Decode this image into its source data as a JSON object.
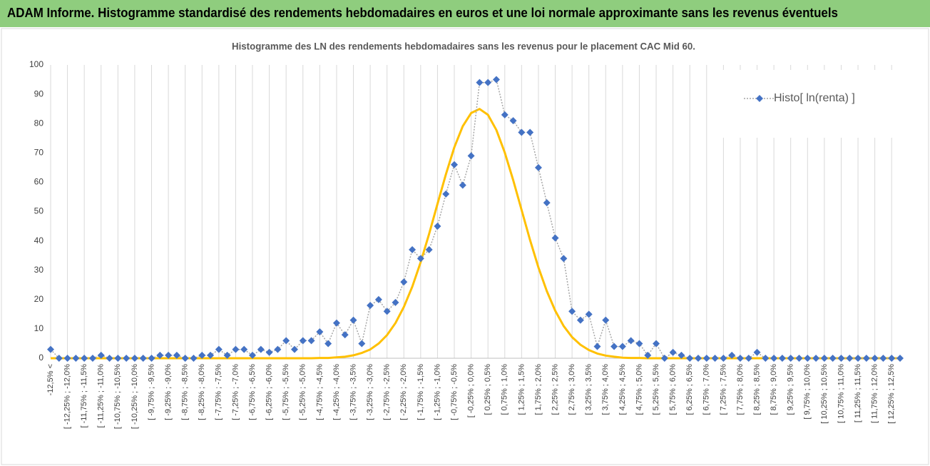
{
  "header": {
    "title": "ADAM Informe. Histogramme standardisé des rendements hebdomadaires en euros et une loi normale approximante sans les revenus éventuels"
  },
  "chart_data": {
    "type": "line",
    "title": "Histogramme des LN des rendements hebdomadaires sans les revenus pour le placement CAC Mid 60.",
    "categories": [
      "-12,5% <",
      null,
      "[ -12,25% ; -12,0%",
      null,
      "[ -11,75% ; -11,5%",
      null,
      "[ -11,25% ; -11,0%",
      null,
      "[ -10,75% ; -10,5%",
      null,
      "[ -10,25% ; -10,0%",
      null,
      "[ -9,75% ; -9,5%",
      null,
      "[ -9,25% ; -9,0%",
      null,
      "[ -8,75% ; -8,5%",
      null,
      "[ -8,25% ; -8,0%",
      null,
      "[ -7,75% ; -7,5%",
      null,
      "[ -7,25% ; -7,0%",
      null,
      "[ -6,75% ; -6,5%",
      null,
      "[ -6,25% ; -6,0%",
      null,
      "[ -5,75% ; -5,5%",
      null,
      "[ -5,25% ; -5,0%",
      null,
      "[ -4,75% ; -4,5%",
      null,
      "[ -4,25% ; -4,0%",
      null,
      "[ -3,75% ; -3,5%",
      null,
      "[ -3,25% ; -3,0%",
      null,
      "[ -2,75% ; -2,5%",
      null,
      "[ -2,25% ; -2,0%",
      null,
      "[ -1,75% ; -1,5%",
      null,
      "[ -1,25% ; -1,0%",
      null,
      "[ -0,75% ; -0,5%",
      null,
      "[ -0,25% ; 0,0%",
      null,
      "[ 0,25% ; 0,5%",
      null,
      "[ 0,75% ; 1,0%",
      null,
      "[ 1,25% ; 1,5%",
      null,
      "[ 1,75% ; 2,0%",
      null,
      "[ 2,25% ; 2,5%",
      null,
      "[ 2,75% ; 3,0%",
      null,
      "[ 3,25% ; 3,5%",
      null,
      "[ 3,75% ; 4,0%",
      null,
      "[ 4,25% ; 4,5%",
      null,
      "[ 4,75% ; 5,0%",
      null,
      "[ 5,25% ; 5,5%",
      null,
      "[ 5,75% ; 6,0%",
      null,
      "[ 6,25% ; 6,5%",
      null,
      "[ 6,75% ; 7,0%",
      null,
      "[ 7,25% ; 7,5%",
      null,
      "[ 7,75% ; 8,0%",
      null,
      "[ 8,25% ; 8,5%",
      null,
      "[ 8,75% ; 9,0%",
      null,
      "[ 9,25% ; 9,5%",
      null,
      "[ 9,75% ; 10,0%",
      null,
      "[ 10,25% ; 10,5%",
      null,
      "[ 10,75% ; 11,0%",
      null,
      "[ 11,25% ; 11,5%",
      null,
      "[ 11,75% ; 12,0%",
      null,
      "[ 12,25% ; 12,5%",
      null
    ],
    "series": [
      {
        "name": "Histo[ ln(renta) ]",
        "color": "#4472c4",
        "marker": "diamond",
        "line_style": "dotted",
        "values": [
          3,
          0,
          0,
          0,
          0,
          0,
          1,
          0,
          0,
          0,
          0,
          0,
          0,
          1,
          1,
          1,
          0,
          0,
          1,
          1,
          3,
          1,
          3,
          3,
          1,
          3,
          2,
          3,
          6,
          3,
          6,
          6,
          9,
          5,
          12,
          8,
          13,
          5,
          18,
          20,
          16,
          19,
          26,
          37,
          34,
          37,
          45,
          56,
          66,
          59,
          69,
          94,
          94,
          95,
          83,
          81,
          77,
          77,
          65,
          53,
          41,
          34,
          16,
          13,
          15,
          4,
          13,
          4,
          4,
          6,
          5,
          1,
          5,
          0,
          2,
          1,
          0,
          0,
          0,
          0,
          0,
          1,
          0,
          0,
          2,
          0,
          0,
          0,
          0,
          0,
          0,
          0,
          0,
          0,
          0,
          0,
          0,
          0,
          0,
          0,
          0,
          0
        ]
      },
      {
        "color": "#ffc000",
        "marker": "none",
        "line_style": "solid",
        "values": [
          0,
          0,
          0,
          0,
          0,
          0,
          0,
          0,
          0,
          0,
          0,
          0,
          0,
          0,
          0,
          0,
          0,
          0,
          0,
          0,
          0,
          0,
          0,
          0,
          0,
          0,
          0,
          0,
          0,
          0,
          0,
          0,
          0.1,
          0.1,
          0.3,
          0.5,
          1.0,
          1.8,
          3.0,
          5.0,
          7.9,
          12.0,
          17.5,
          24.4,
          32.8,
          42.3,
          52.6,
          62.7,
          71.9,
          79.1,
          83.6,
          85.0,
          83.0,
          77.8,
          70.1,
          60.7,
          50.5,
          40.4,
          31.0,
          22.9,
          16.2,
          11.0,
          7.2,
          4.6,
          2.8,
          1.6,
          0.9,
          0.5,
          0.2,
          0.1,
          0.1,
          0,
          0,
          0,
          0,
          0,
          0,
          0,
          0,
          0,
          0,
          0,
          0,
          0,
          0,
          0,
          0,
          0,
          0,
          0,
          0,
          0,
          0,
          0,
          0,
          0,
          0,
          0,
          0,
          0,
          0,
          0
        ]
      }
    ],
    "ylim": [
      0,
      100
    ],
    "yticks": [
      0,
      10,
      20,
      30,
      40,
      50,
      60,
      70,
      80,
      90,
      100
    ],
    "grid": "x",
    "legend": "top-right"
  }
}
